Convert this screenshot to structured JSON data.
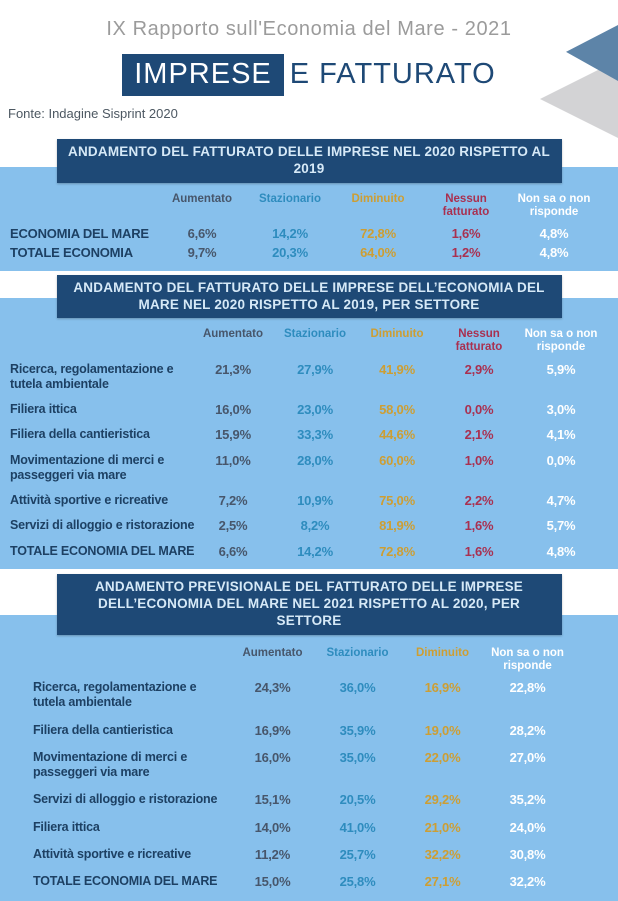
{
  "header": {
    "report_title": "IX  Rapporto sull'Economia del  Mare - 2021",
    "title_highlight": "IMPRESE",
    "title_rest": "E  FATTURATO",
    "source": "Fonte:  Indagine Sisprint 2020"
  },
  "colors": {
    "navy": "#1e4976",
    "panel_blue": "#87c0ec",
    "bar_text": "#d6e9f7",
    "row_label": "#1d4063",
    "aumentato": "#47566b",
    "stazionario": "#2e8cbe",
    "diminuito": "#cd9e33",
    "nessun_fatturato": "#a93050",
    "non_sa": "#ffffff",
    "deco_blue": "#5d84a8",
    "deco_gray": "#d3d3d5"
  },
  "tables": [
    {
      "title": "ANDAMENTO DEL FATTURATO DELLE IMPRESE NEL 2020 RISPETTO AL 2019",
      "columns": [
        "Aumentato",
        "Stazionario",
        "Diminuito",
        "Nessun fatturato",
        "Non sa o non risponde"
      ],
      "column_colors": [
        "#47566b",
        "#2e8cbe",
        "#cd9e33",
        "#a93050",
        "#ffffff"
      ],
      "rows": [
        {
          "label": "ECONOMIA DEL MARE",
          "values": [
            "6,6%",
            "14,2%",
            "72,8%",
            "1,6%",
            "4,8%"
          ]
        },
        {
          "label": "TOTALE ECONOMIA",
          "values": [
            "9,7%",
            "20,3%",
            "64,0%",
            "1,2%",
            "4,8%"
          ]
        }
      ]
    },
    {
      "title": "ANDAMENTO DEL FATTURATO DELLE IMPRESE DELL’ECONOMIA DEL MARE NEL 2020 RISPETTO AL 2019, PER SETTORE",
      "columns": [
        "Aumentato",
        "Stazionario",
        "Diminuito",
        "Nessun fatturato",
        "Non sa o non risponde"
      ],
      "column_colors": [
        "#47566b",
        "#2e8cbe",
        "#cd9e33",
        "#a93050",
        "#ffffff"
      ],
      "rows": [
        {
          "label": "Ricerca, regolamentazione e\ntutela ambientale",
          "values": [
            "21,3%",
            "27,9%",
            "41,9%",
            "2,9%",
            "5,9%"
          ]
        },
        {
          "label": "Filiera ittica",
          "values": [
            "16,0%",
            "23,0%",
            "58,0%",
            "0,0%",
            "3,0%"
          ]
        },
        {
          "label": "Filiera della cantieristica",
          "values": [
            "15,9%",
            "33,3%",
            "44,6%",
            "2,1%",
            "4,1%"
          ]
        },
        {
          "label": "Movimentazione di merci e\npasseggeri via mare",
          "values": [
            "11,0%",
            "28,0%",
            "60,0%",
            "1,0%",
            "0,0%"
          ]
        },
        {
          "label": "Attività sportive e ricreative",
          "values": [
            "7,2%",
            "10,9%",
            "75,0%",
            "2,2%",
            "4,7%"
          ]
        },
        {
          "label": "Servizi di alloggio e ristorazione",
          "values": [
            "2,5%",
            "8,2%",
            "81,9%",
            "1,6%",
            "5,7%"
          ]
        },
        {
          "label": "TOTALE ECONOMIA DEL MARE",
          "values": [
            "6,6%",
            "14,2%",
            "72,8%",
            "1,6%",
            "4,8%"
          ]
        }
      ]
    },
    {
      "title": "ANDAMENTO PREVISIONALE DEL FATTURATO DELLE IMPRESE DELL’ECONOMIA DEL MARE NEL 2021 RISPETTO AL 2020, PER SETTORE",
      "columns": [
        "Aumentato",
        "Stazionario",
        "Diminuito",
        "Non sa o non risponde"
      ],
      "column_colors": [
        "#47566b",
        "#2e8cbe",
        "#cd9e33",
        "#ffffff"
      ],
      "rows": [
        {
          "label": "Ricerca, regolamentazione e\ntutela ambientale",
          "values": [
            "24,3%",
            "36,0%",
            "16,9%",
            "22,8%"
          ]
        },
        {
          "label": "Filiera della cantieristica",
          "values": [
            "16,9%",
            "35,9%",
            "19,0%",
            "28,2%"
          ]
        },
        {
          "label": "Movimentazione di merci e\npasseggeri via mare",
          "values": [
            "16,0%",
            "35,0%",
            "22,0%",
            "27,0%"
          ]
        },
        {
          "label": "Servizi di alloggio e ristorazione",
          "values": [
            "15,1%",
            "20,5%",
            "29,2%",
            "35,2%"
          ]
        },
        {
          "label": "Filiera ittica",
          "values": [
            "14,0%",
            "41,0%",
            "21,0%",
            "24,0%"
          ]
        },
        {
          "label": "Attività sportive e ricreative",
          "values": [
            "11,2%",
            "25,7%",
            "32,2%",
            "30,8%"
          ]
        },
        {
          "label": "TOTALE ECONOMIA DEL MARE",
          "values": [
            "15,0%",
            "25,8%",
            "27,1%",
            "32,2%"
          ]
        }
      ]
    }
  ]
}
